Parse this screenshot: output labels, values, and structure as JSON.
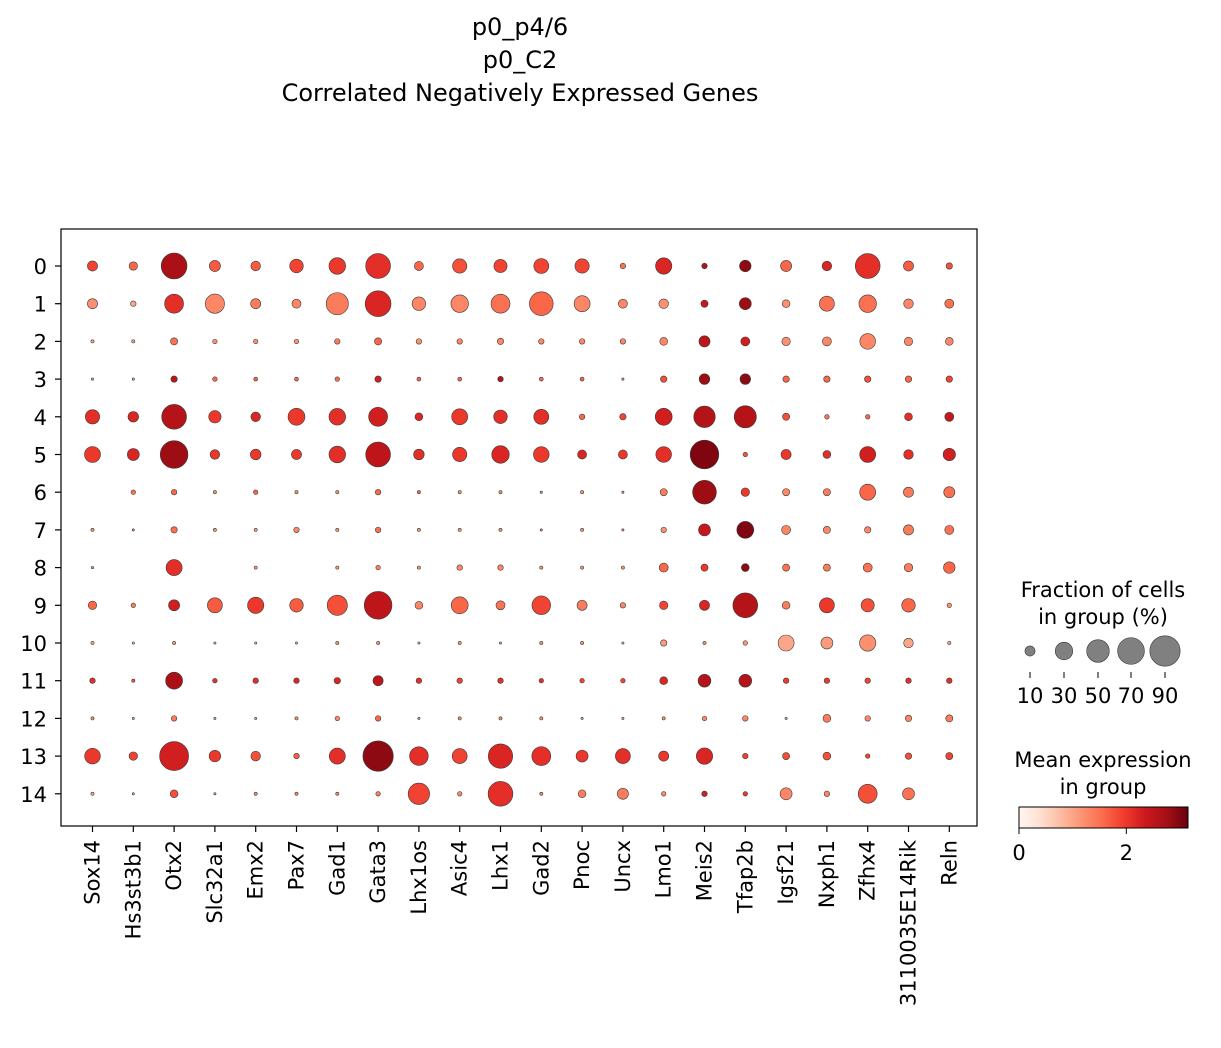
{
  "chart_data": {
    "type": "dotplot",
    "title": [
      "p0_p4/6",
      "p0_C2",
      "Correlated Negatively Expressed Genes"
    ],
    "genes": [
      "Sox14",
      "Hs3st3b1",
      "Otx2",
      "Slc32a1",
      "Emx2",
      "Pax7",
      "Gad1",
      "Gata3",
      "Lhx1os",
      "Asic4",
      "Lhx1",
      "Gad2",
      "Pnoc",
      "Uncx",
      "Lmo1",
      "Meis2",
      "Tfap2b",
      "Igsf21",
      "Nxph1",
      "Zfhx4",
      "3110035E14Rik",
      "Reln"
    ],
    "groups": [
      "0",
      "1",
      "2",
      "3",
      "4",
      "5",
      "6",
      "7",
      "8",
      "9",
      "10",
      "11",
      "12",
      "13",
      "14"
    ],
    "fraction_pct": [
      [
        10,
        7,
        65,
        12,
        9,
        18,
        27,
        60,
        8,
        20,
        17,
        22,
        20,
        3,
        26,
        3,
        13,
        12,
        9,
        60,
        10,
        4
      ],
      [
        10,
        3,
        35,
        36,
        10,
        8,
        48,
        65,
        18,
        30,
        35,
        55,
        25,
        8,
        9,
        5,
        14,
        6,
        22,
        30,
        9,
        8
      ],
      [
        1,
        1,
        5,
        2,
        2,
        2,
        3,
        5,
        3,
        3,
        4,
        3,
        3,
        3,
        6,
        12,
        8,
        7,
        8,
        24,
        7,
        6
      ],
      [
        0.5,
        0.5,
        4,
        2,
        1.5,
        1.5,
        2,
        4,
        1.5,
        1.5,
        3,
        1.5,
        1.5,
        0.5,
        4,
        11,
        11,
        4,
        4,
        4,
        4,
        4
      ],
      [
        20,
        11,
        60,
        15,
        9,
        28,
        27,
        35,
        6,
        25,
        18,
        22,
        3,
        4,
        28,
        45,
        48,
        5,
        2,
        2,
        6,
        8
      ],
      [
        25,
        14,
        75,
        9,
        11,
        10,
        27,
        60,
        11,
        20,
        30,
        24,
        8,
        8,
        24,
        80,
        2,
        10,
        6,
        25,
        9,
        15
      ],
      [
        0,
        2,
        3,
        1,
        2,
        1,
        1,
        3,
        1,
        1,
        1,
        0.5,
        1,
        0.5,
        5,
        55,
        7,
        5,
        5,
        25,
        10,
        12
      ],
      [
        1,
        0.5,
        4,
        1,
        1,
        3,
        1,
        3,
        1,
        1,
        1,
        0.5,
        1,
        0.5,
        3,
        14,
        28,
        8,
        5,
        4,
        10,
        8
      ],
      [
        0.5,
        0,
        25,
        0,
        1,
        0,
        1,
        2,
        1,
        3,
        3,
        1,
        1,
        1,
        8,
        5,
        6,
        5,
        5,
        8,
        7,
        13
      ],
      [
        7,
        2,
        12,
        22,
        26,
        18,
        40,
        75,
        6,
        28,
        8,
        34,
        10,
        3,
        7,
        10,
        60,
        6,
        22,
        17,
        18,
        2
      ],
      [
        1,
        0.5,
        1,
        0.5,
        0.5,
        0.5,
        1,
        1,
        0.5,
        1,
        0.5,
        1,
        1,
        0.5,
        4,
        1,
        2,
        25,
        14,
        26,
        9,
        1
      ],
      [
        3,
        1,
        28,
        2,
        3,
        3,
        4,
        10,
        3,
        3,
        3,
        2,
        2,
        2,
        6,
        16,
        16,
        3,
        3,
        3,
        3,
        3
      ],
      [
        1,
        0.5,
        3,
        0.5,
        0.5,
        1,
        2,
        3,
        0.5,
        1,
        1,
        1,
        0.5,
        0.5,
        1,
        2,
        3,
        0.5,
        6,
        3,
        4,
        5
      ],
      [
        24,
        7,
        82,
        13,
        9,
        3,
        25,
        90,
        34,
        22,
        58,
        35,
        14,
        22,
        10,
        26,
        3,
        5,
        6,
        2,
        4,
        5
      ],
      [
        1,
        0.5,
        6,
        0.5,
        1,
        1,
        1,
        2,
        45,
        2,
        60,
        1,
        6,
        12,
        2,
        3,
        2,
        14,
        3,
        35,
        14,
        0
      ]
    ],
    "mean_expression": [
      [
        1.9,
        1.6,
        2.7,
        1.7,
        1.7,
        1.9,
        2.0,
        2.1,
        1.6,
        1.8,
        1.9,
        1.9,
        1.9,
        1.5,
        2.2,
        2.6,
        2.9,
        1.6,
        2.2,
        2.1,
        1.7,
        1.8
      ],
      [
        1.2,
        1.0,
        2.1,
        1.3,
        1.4,
        1.3,
        1.4,
        2.2,
        1.3,
        1.3,
        1.5,
        1.6,
        1.3,
        1.3,
        1.2,
        2.4,
        2.8,
        1.2,
        1.5,
        1.5,
        1.3,
        1.5
      ],
      [
        1.0,
        1.0,
        1.5,
        1.2,
        1.2,
        1.2,
        1.4,
        1.6,
        1.2,
        1.3,
        1.3,
        1.3,
        1.3,
        1.3,
        1.3,
        2.5,
        2.3,
        1.2,
        1.3,
        1.3,
        1.3,
        1.3
      ],
      [
        1.0,
        1.0,
        2.5,
        1.6,
        1.6,
        1.6,
        1.6,
        2.3,
        1.6,
        1.6,
        2.6,
        1.6,
        1.6,
        1.2,
        1.8,
        2.8,
        2.9,
        1.6,
        1.6,
        1.8,
        1.6,
        1.9
      ],
      [
        2.1,
        2.2,
        2.6,
        2.0,
        2.2,
        2.0,
        2.1,
        2.3,
        2.2,
        2.0,
        2.1,
        2.1,
        1.6,
        1.9,
        2.3,
        2.6,
        2.6,
        1.8,
        1.5,
        1.6,
        2.1,
        2.4
      ],
      [
        2.0,
        2.2,
        2.8,
        2.0,
        2.0,
        2.0,
        2.1,
        2.5,
        2.1,
        2.0,
        2.2,
        2.0,
        2.2,
        2.0,
        2.1,
        3.0,
        1.8,
        2.0,
        2.1,
        2.3,
        2.1,
        2.3
      ],
      [
        0,
        1.5,
        1.6,
        1.2,
        1.6,
        1.2,
        1.2,
        1.6,
        1.6,
        1.2,
        1.2,
        1.2,
        1.2,
        1.2,
        1.4,
        2.8,
        2.0,
        1.3,
        1.4,
        1.6,
        1.4,
        1.5
      ],
      [
        1.2,
        1.2,
        1.5,
        1.2,
        1.2,
        1.3,
        1.2,
        1.5,
        1.2,
        1.2,
        1.2,
        1.2,
        1.2,
        1.2,
        1.2,
        2.4,
        3.0,
        1.3,
        1.3,
        1.3,
        1.4,
        1.5
      ],
      [
        1.2,
        0,
        2.1,
        0,
        1.2,
        0,
        1.2,
        1.4,
        1.2,
        1.3,
        1.3,
        1.2,
        1.2,
        1.2,
        1.6,
        2.0,
        2.9,
        1.5,
        1.4,
        1.5,
        1.4,
        1.6
      ],
      [
        1.6,
        1.4,
        2.3,
        1.7,
        2.0,
        1.7,
        1.8,
        2.5,
        1.3,
        1.6,
        1.5,
        1.9,
        1.4,
        1.3,
        1.9,
        2.2,
        2.6,
        1.4,
        2.0,
        1.8,
        1.6,
        1.2
      ],
      [
        1.0,
        1.0,
        1.2,
        1.0,
        1.0,
        1.0,
        1.2,
        1.2,
        1.0,
        1.2,
        1.0,
        1.2,
        1.2,
        1.0,
        1.1,
        1.2,
        1.2,
        1.0,
        1.1,
        1.2,
        1.0,
        1.0
      ],
      [
        2.1,
        1.8,
        2.7,
        2.1,
        2.1,
        2.2,
        2.2,
        2.5,
        2.1,
        1.9,
        2.1,
        2.1,
        1.9,
        1.9,
        2.2,
        2.6,
        2.6,
        2.0,
        2.0,
        1.9,
        2.1,
        2.1
      ],
      [
        1.2,
        1.0,
        1.4,
        1.0,
        1.0,
        1.2,
        1.3,
        1.6,
        1.0,
        1.2,
        1.2,
        1.2,
        1.0,
        1.0,
        1.2,
        1.3,
        1.3,
        1.0,
        1.4,
        1.3,
        1.3,
        1.4
      ],
      [
        2.0,
        1.9,
        2.3,
        2.0,
        1.8,
        1.7,
        2.1,
        2.9,
        2.1,
        1.9,
        2.2,
        2.1,
        2.0,
        2.1,
        2.0,
        2.2,
        1.9,
        1.8,
        1.8,
        1.9,
        1.8,
        1.9
      ],
      [
        1.0,
        1.0,
        1.8,
        1.0,
        1.3,
        1.3,
        1.3,
        1.4,
        1.9,
        1.3,
        2.1,
        1.3,
        1.4,
        1.4,
        1.3,
        2.3,
        2.0,
        1.3,
        1.3,
        1.8,
        1.5,
        1.3
      ]
    ],
    "size_legend": {
      "title": [
        "Fraction of cells",
        "in group (%)"
      ],
      "values": [
        10,
        30,
        50,
        70,
        90
      ]
    },
    "color_legend": {
      "title": [
        "Mean expression",
        "in group"
      ],
      "ticks": [
        0,
        2
      ],
      "range": [
        0,
        3.15
      ],
      "colormap": [
        "#fff5f0",
        "#fee0d2",
        "#fcbba1",
        "#fc9272",
        "#fb6a4a",
        "#ef3b2c",
        "#cb181d",
        "#a50f15",
        "#67000d"
      ]
    }
  }
}
